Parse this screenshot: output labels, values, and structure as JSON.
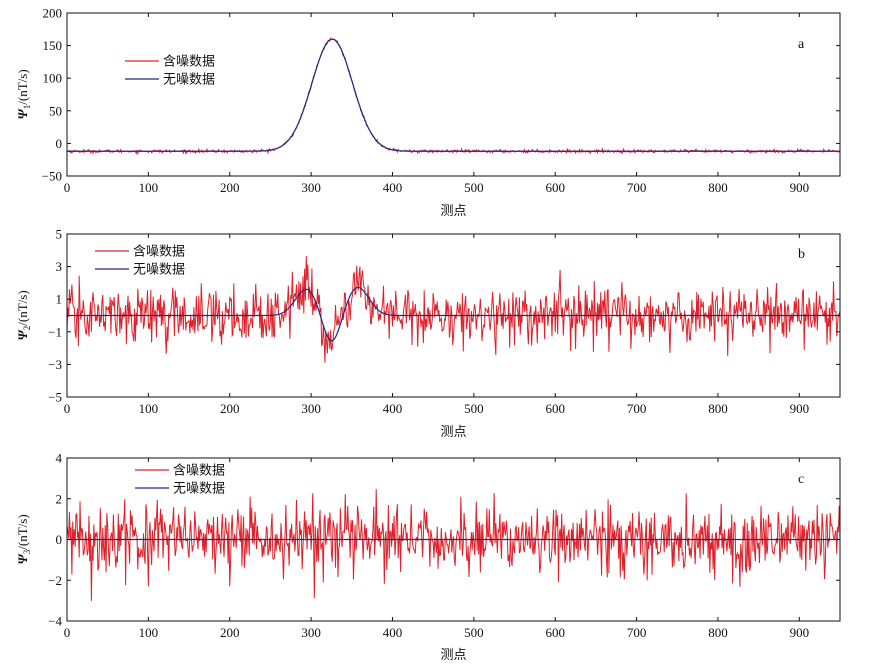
{
  "colors": {
    "noisy": "#e0202a",
    "clean": "#1f2a8a",
    "axis": "#111111"
  },
  "chart_data": [
    {
      "id": "a",
      "type": "line",
      "panel_label": "a",
      "xlabel": "测点",
      "ylabel_symbol": "Ψ",
      "ylabel_sub": "1",
      "ylabel_unit": "/(nT/s)",
      "xlim": [
        0,
        950
      ],
      "ylim": [
        -50,
        200
      ],
      "xticks": [
        0,
        100,
        200,
        300,
        400,
        500,
        600,
        700,
        800,
        900
      ],
      "yticks": [
        -50,
        0,
        50,
        100,
        150,
        200
      ],
      "legend_placement": "top-left",
      "noise_amplitude": 1.2,
      "series": [
        {
          "name": "含噪数据",
          "color_key": "noisy",
          "shape": {
            "kind": "gaussian",
            "baseline": -12,
            "amplitude": 172,
            "center": 326,
            "sigma": 25
          }
        },
        {
          "name": "无噪数据",
          "color_key": "clean",
          "shape": {
            "kind": "gaussian",
            "baseline": -12,
            "amplitude": 172,
            "center": 326,
            "sigma": 25
          }
        }
      ]
    },
    {
      "id": "b",
      "type": "line",
      "panel_label": "b",
      "xlabel": "测点",
      "ylabel_symbol": "Ψ",
      "ylabel_sub": "2",
      "ylabel_unit": "/(nT/s)",
      "xlim": [
        0,
        950
      ],
      "ylim": [
        -5,
        5
      ],
      "xticks": [
        0,
        100,
        200,
        300,
        400,
        500,
        600,
        700,
        800,
        900
      ],
      "yticks": [
        -5,
        -3,
        -1,
        1,
        3,
        5
      ],
      "legend_placement": "top-left",
      "noise_amplitude": 0.85,
      "series": [
        {
          "name": "含噪数据",
          "color_key": "noisy"
        },
        {
          "name": "无噪数据",
          "color_key": "clean",
          "shape": {
            "kind": "wavelet",
            "baseline": 0,
            "peaks": [
              {
                "center": 295,
                "amplitude": 1.65,
                "sigma": 14
              },
              {
                "center": 325,
                "amplitude": -1.85,
                "sigma": 11
              },
              {
                "center": 357,
                "amplitude": 1.75,
                "sigma": 14
              }
            ]
          }
        }
      ]
    },
    {
      "id": "c",
      "type": "line",
      "panel_label": "c",
      "xlabel": "测点",
      "ylabel_symbol": "Ψ",
      "ylabel_sub": "3",
      "ylabel_unit": "/(nT/s)",
      "xlim": [
        0,
        950
      ],
      "ylim": [
        -4,
        4
      ],
      "xticks": [
        0,
        100,
        200,
        300,
        400,
        500,
        600,
        700,
        800,
        900
      ],
      "yticks": [
        -4,
        -2,
        0,
        2,
        4
      ],
      "legend_placement": "top-left",
      "noise_amplitude": 0.85,
      "series": [
        {
          "name": "含噪数据",
          "color_key": "noisy"
        },
        {
          "name": "无噪数据",
          "color_key": "clean",
          "shape": {
            "kind": "constant",
            "baseline": 0
          }
        }
      ]
    }
  ]
}
